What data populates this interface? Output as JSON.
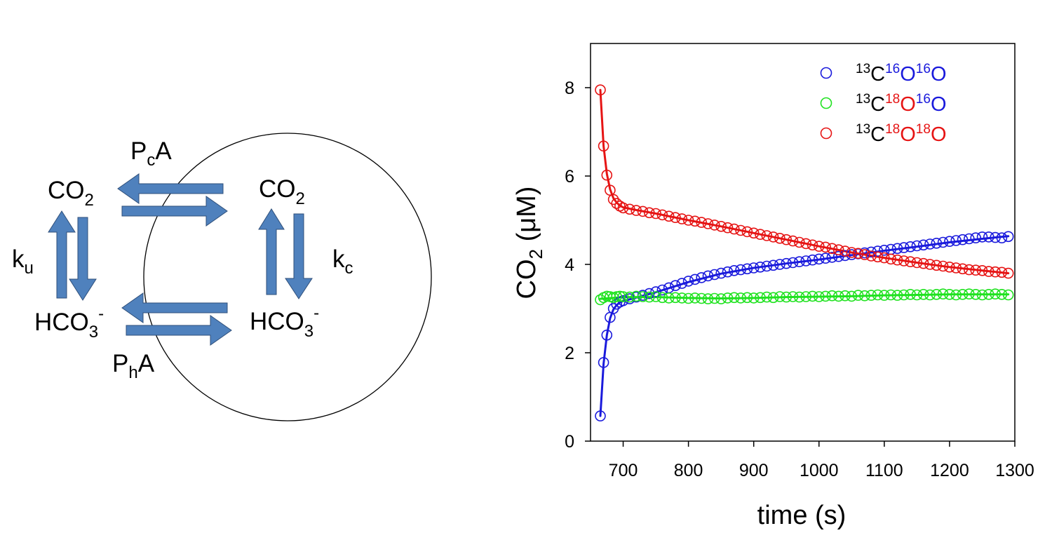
{
  "colors": {
    "arrow_fill": "#4f81bd",
    "arrow_stroke": "#2f4f7a",
    "blue": "#1a1adc",
    "green": "#1fe21f",
    "red": "#e61414"
  },
  "diagram": {
    "label_co2_out": {
      "main": "CO",
      "sub": "2"
    },
    "label_co2_in": {
      "main": "CO",
      "sub": "2"
    },
    "label_hco3_out": {
      "main": "HCO",
      "sub": "3",
      "sup": "-"
    },
    "label_hco3_in": {
      "main": "HCO",
      "sub": "3",
      "sup": "-"
    },
    "label_pca": {
      "p": "P",
      "sub": "c",
      "a": "A"
    },
    "label_pha": {
      "p": "P",
      "sub": "h",
      "a": "A"
    },
    "label_ku": {
      "k": "k",
      "sub": "u"
    },
    "label_kc": {
      "k": "k",
      "sub": "c"
    }
  },
  "chart_data": {
    "type": "scatter",
    "xlabel": "time (s)",
    "ylabel": {
      "main": "CO",
      "sub": "2",
      "rest": " (μM)"
    },
    "xlim": [
      650,
      1300
    ],
    "ylim": [
      0,
      9
    ],
    "xticks": [
      "700",
      "800",
      "900",
      "1000",
      "1100",
      "1200",
      "1300"
    ],
    "yticks": [
      "0",
      "2",
      "4",
      "6",
      "8"
    ],
    "grid": false,
    "legend_position": "top-right",
    "series": [
      {
        "name": "13C16O16O",
        "legend": [
          {
            "text": "13",
            "sup": true,
            "color": "#000000"
          },
          {
            "text": "C",
            "sup": false,
            "color": "#000000"
          },
          {
            "text": "16",
            "sup": true,
            "color": "#1a1adc"
          },
          {
            "text": "O",
            "sup": false,
            "color": "#1a1adc"
          },
          {
            "text": "16",
            "sup": true,
            "color": "#1a1adc"
          },
          {
            "text": "O",
            "sup": false,
            "color": "#1a1adc"
          }
        ],
        "color": "#1a1adc",
        "points": [
          [
            665,
            0.57
          ],
          [
            670,
            1.78
          ],
          [
            675,
            2.4
          ],
          [
            680,
            2.8
          ],
          [
            685,
            3.0
          ],
          [
            690,
            3.1
          ],
          [
            695,
            3.15
          ],
          [
            700,
            3.18
          ],
          [
            710,
            3.22
          ],
          [
            720,
            3.26
          ],
          [
            730,
            3.3
          ],
          [
            740,
            3.34
          ],
          [
            750,
            3.38
          ],
          [
            760,
            3.42
          ],
          [
            770,
            3.47
          ],
          [
            780,
            3.52
          ],
          [
            790,
            3.57
          ],
          [
            800,
            3.62
          ],
          [
            810,
            3.66
          ],
          [
            820,
            3.7
          ],
          [
            830,
            3.74
          ],
          [
            840,
            3.77
          ],
          [
            850,
            3.8
          ],
          [
            860,
            3.83
          ],
          [
            870,
            3.86
          ],
          [
            880,
            3.88
          ],
          [
            890,
            3.9
          ],
          [
            900,
            3.92
          ],
          [
            910,
            3.94
          ],
          [
            920,
            3.96
          ],
          [
            930,
            3.98
          ],
          [
            940,
            4.0
          ],
          [
            950,
            4.02
          ],
          [
            960,
            4.04
          ],
          [
            970,
            4.06
          ],
          [
            980,
            4.08
          ],
          [
            990,
            4.1
          ],
          [
            1000,
            4.12
          ],
          [
            1010,
            4.14
          ],
          [
            1020,
            4.16
          ],
          [
            1030,
            4.18
          ],
          [
            1040,
            4.2
          ],
          [
            1050,
            4.22
          ],
          [
            1060,
            4.24
          ],
          [
            1070,
            4.26
          ],
          [
            1080,
            4.28
          ],
          [
            1090,
            4.3
          ],
          [
            1100,
            4.32
          ],
          [
            1110,
            4.34
          ],
          [
            1120,
            4.36
          ],
          [
            1130,
            4.38
          ],
          [
            1140,
            4.4
          ],
          [
            1150,
            4.42
          ],
          [
            1160,
            4.44
          ],
          [
            1170,
            4.46
          ],
          [
            1180,
            4.48
          ],
          [
            1190,
            4.5
          ],
          [
            1200,
            4.52
          ],
          [
            1210,
            4.54
          ],
          [
            1220,
            4.56
          ],
          [
            1230,
            4.58
          ],
          [
            1240,
            4.6
          ],
          [
            1250,
            4.62
          ],
          [
            1260,
            4.62
          ],
          [
            1270,
            4.61
          ],
          [
            1280,
            4.6
          ],
          [
            1290,
            4.63
          ]
        ],
        "fit": [
          [
            665,
            0.57
          ],
          [
            670,
            1.75
          ],
          [
            675,
            2.4
          ],
          [
            680,
            2.78
          ],
          [
            685,
            2.98
          ],
          [
            690,
            3.08
          ],
          [
            695,
            3.14
          ],
          [
            700,
            3.17
          ],
          [
            720,
            3.25
          ],
          [
            750,
            3.37
          ],
          [
            800,
            3.6
          ],
          [
            850,
            3.79
          ],
          [
            900,
            3.92
          ],
          [
            950,
            4.02
          ],
          [
            1000,
            4.11
          ],
          [
            1050,
            4.21
          ],
          [
            1100,
            4.31
          ],
          [
            1150,
            4.4
          ],
          [
            1200,
            4.5
          ],
          [
            1250,
            4.58
          ],
          [
            1290,
            4.64
          ]
        ]
      },
      {
        "name": "13C18O16O",
        "legend": [
          {
            "text": "13",
            "sup": true,
            "color": "#000000"
          },
          {
            "text": "C",
            "sup": false,
            "color": "#000000"
          },
          {
            "text": "18",
            "sup": true,
            "color": "#e61414"
          },
          {
            "text": "O",
            "sup": false,
            "color": "#e61414"
          },
          {
            "text": "16",
            "sup": true,
            "color": "#1a1adc"
          },
          {
            "text": "O",
            "sup": false,
            "color": "#1a1adc"
          }
        ],
        "color": "#1fe21f",
        "points": [
          [
            665,
            3.2
          ],
          [
            670,
            3.25
          ],
          [
            675,
            3.28
          ],
          [
            680,
            3.27
          ],
          [
            685,
            3.25
          ],
          [
            690,
            3.27
          ],
          [
            695,
            3.28
          ],
          [
            700,
            3.27
          ],
          [
            710,
            3.26
          ],
          [
            720,
            3.28
          ],
          [
            730,
            3.27
          ],
          [
            740,
            3.26
          ],
          [
            750,
            3.27
          ],
          [
            760,
            3.25
          ],
          [
            770,
            3.24
          ],
          [
            780,
            3.25
          ],
          [
            790,
            3.24
          ],
          [
            800,
            3.23
          ],
          [
            810,
            3.24
          ],
          [
            820,
            3.23
          ],
          [
            830,
            3.22
          ],
          [
            840,
            3.23
          ],
          [
            850,
            3.22
          ],
          [
            860,
            3.24
          ],
          [
            870,
            3.25
          ],
          [
            880,
            3.24
          ],
          [
            890,
            3.25
          ],
          [
            900,
            3.24
          ],
          [
            910,
            3.25
          ],
          [
            920,
            3.26
          ],
          [
            930,
            3.25
          ],
          [
            940,
            3.27
          ],
          [
            950,
            3.26
          ],
          [
            960,
            3.27
          ],
          [
            970,
            3.26
          ],
          [
            980,
            3.27
          ],
          [
            990,
            3.28
          ],
          [
            1000,
            3.27
          ],
          [
            1010,
            3.28
          ],
          [
            1020,
            3.29
          ],
          [
            1030,
            3.28
          ],
          [
            1040,
            3.29
          ],
          [
            1050,
            3.28
          ],
          [
            1060,
            3.3
          ],
          [
            1070,
            3.29
          ],
          [
            1080,
            3.3
          ],
          [
            1090,
            3.31
          ],
          [
            1100,
            3.3
          ],
          [
            1110,
            3.31
          ],
          [
            1120,
            3.3
          ],
          [
            1130,
            3.31
          ],
          [
            1140,
            3.32
          ],
          [
            1150,
            3.31
          ],
          [
            1160,
            3.32
          ],
          [
            1170,
            3.31
          ],
          [
            1180,
            3.32
          ],
          [
            1190,
            3.33
          ],
          [
            1200,
            3.32
          ],
          [
            1210,
            3.31
          ],
          [
            1220,
            3.32
          ],
          [
            1230,
            3.33
          ],
          [
            1240,
            3.32
          ],
          [
            1250,
            3.31
          ],
          [
            1260,
            3.32
          ],
          [
            1270,
            3.33
          ],
          [
            1280,
            3.32
          ],
          [
            1290,
            3.31
          ]
        ],
        "fit": [
          [
            665,
            3.22
          ],
          [
            700,
            3.26
          ],
          [
            750,
            3.26
          ],
          [
            800,
            3.24
          ],
          [
            850,
            3.23
          ],
          [
            900,
            3.24
          ],
          [
            950,
            3.26
          ],
          [
            1000,
            3.27
          ],
          [
            1050,
            3.28
          ],
          [
            1100,
            3.3
          ],
          [
            1150,
            3.31
          ],
          [
            1200,
            3.32
          ],
          [
            1250,
            3.32
          ],
          [
            1290,
            3.32
          ]
        ]
      },
      {
        "name": "13C18O18O",
        "legend": [
          {
            "text": "13",
            "sup": true,
            "color": "#000000"
          },
          {
            "text": "C",
            "sup": false,
            "color": "#000000"
          },
          {
            "text": "18",
            "sup": true,
            "color": "#e61414"
          },
          {
            "text": "O",
            "sup": false,
            "color": "#e61414"
          },
          {
            "text": "18",
            "sup": true,
            "color": "#e61414"
          },
          {
            "text": "O",
            "sup": false,
            "color": "#e61414"
          }
        ],
        "color": "#e61414",
        "points": [
          [
            665,
            7.95
          ],
          [
            670,
            6.68
          ],
          [
            675,
            6.02
          ],
          [
            680,
            5.68
          ],
          [
            685,
            5.47
          ],
          [
            690,
            5.38
          ],
          [
            695,
            5.32
          ],
          [
            700,
            5.28
          ],
          [
            710,
            5.25
          ],
          [
            720,
            5.22
          ],
          [
            730,
            5.2
          ],
          [
            740,
            5.17
          ],
          [
            750,
            5.15
          ],
          [
            760,
            5.12
          ],
          [
            770,
            5.09
          ],
          [
            780,
            5.06
          ],
          [
            790,
            5.03
          ],
          [
            800,
            5.0
          ],
          [
            810,
            4.98
          ],
          [
            820,
            4.95
          ],
          [
            830,
            4.92
          ],
          [
            840,
            4.89
          ],
          [
            850,
            4.86
          ],
          [
            860,
            4.83
          ],
          [
            870,
            4.8
          ],
          [
            880,
            4.77
          ],
          [
            890,
            4.74
          ],
          [
            900,
            4.71
          ],
          [
            910,
            4.68
          ],
          [
            920,
            4.65
          ],
          [
            930,
            4.62
          ],
          [
            940,
            4.59
          ],
          [
            950,
            4.56
          ],
          [
            960,
            4.53
          ],
          [
            970,
            4.5
          ],
          [
            980,
            4.47
          ],
          [
            990,
            4.44
          ],
          [
            1000,
            4.41
          ],
          [
            1010,
            4.39
          ],
          [
            1020,
            4.36
          ],
          [
            1030,
            4.33
          ],
          [
            1040,
            4.3
          ],
          [
            1050,
            4.27
          ],
          [
            1060,
            4.25
          ],
          [
            1070,
            4.22
          ],
          [
            1080,
            4.19
          ],
          [
            1090,
            4.17
          ],
          [
            1100,
            4.15
          ],
          [
            1110,
            4.12
          ],
          [
            1120,
            4.1
          ],
          [
            1130,
            4.08
          ],
          [
            1140,
            4.06
          ],
          [
            1150,
            4.04
          ],
          [
            1160,
            4.02
          ],
          [
            1170,
            4.0
          ],
          [
            1180,
            3.98
          ],
          [
            1190,
            3.96
          ],
          [
            1200,
            3.94
          ],
          [
            1210,
            3.92
          ],
          [
            1220,
            3.9
          ],
          [
            1230,
            3.88
          ],
          [
            1240,
            3.87
          ],
          [
            1250,
            3.86
          ],
          [
            1260,
            3.84
          ],
          [
            1270,
            3.83
          ],
          [
            1280,
            3.82
          ],
          [
            1290,
            3.8
          ]
        ],
        "fit": [
          [
            665,
            7.95
          ],
          [
            670,
            6.68
          ],
          [
            675,
            6.05
          ],
          [
            680,
            5.7
          ],
          [
            685,
            5.5
          ],
          [
            690,
            5.4
          ],
          [
            695,
            5.33
          ],
          [
            700,
            5.29
          ],
          [
            720,
            5.23
          ],
          [
            750,
            5.15
          ],
          [
            800,
            5.0
          ],
          [
            850,
            4.86
          ],
          [
            900,
            4.71
          ],
          [
            950,
            4.56
          ],
          [
            1000,
            4.41
          ],
          [
            1050,
            4.27
          ],
          [
            1100,
            4.15
          ],
          [
            1150,
            4.04
          ],
          [
            1200,
            3.94
          ],
          [
            1250,
            3.86
          ],
          [
            1290,
            3.8
          ]
        ]
      }
    ]
  }
}
